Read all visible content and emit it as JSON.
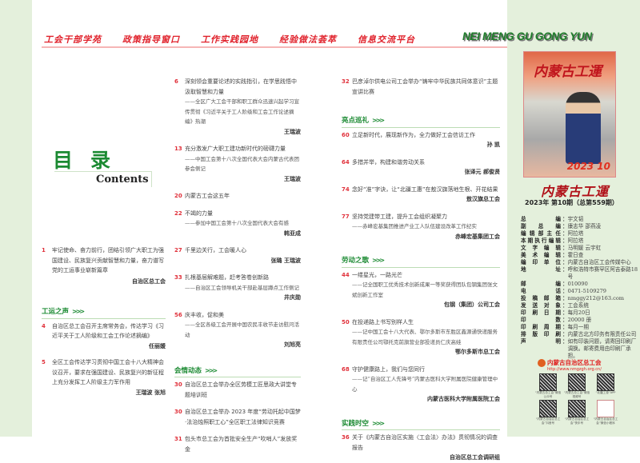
{
  "nav": [
    "工会干部学苑",
    "政策指导窗口",
    "工作实践园地",
    "经验做法荟萃",
    "信息交流平台"
  ],
  "brand": "NEI MENG GU GONG YUN",
  "toc": {
    "title": "目录",
    "subtitle": "Contents"
  },
  "col1": {
    "lead": {
      "page": "1",
      "title": "牢记使命、奋力前行，团结引领广大职工为强国建设、民族复兴贡献智慧和力量，奋力谱写党的工运事业崭新篇章",
      "author": "自治区总工会"
    },
    "section": "工运之声",
    "items": [
      {
        "page": "4",
        "title": "自治区总工会召开主席常务会，传达学习《习近平关于工人阶级和工会工作论述摘编》",
        "author": "任丽媛"
      },
      {
        "page": "5",
        "title": "全区工会传达学习贯彻中国工会十八大精神会议召开，要求在强国建设、民族复兴的新征程上充分发挥工人阶级主力军作用",
        "author": "王瑞波 张旭"
      }
    ]
  },
  "col2": {
    "items": [
      {
        "page": "6",
        "title": "深刻领会重要论述的实践指引，在学思践悟中汲取智慧和力量",
        "sub": "——全区广大工会干部和职工群众迅速兴起学习宣传贯彻《习近平关于工人阶级和工会工作论述摘编》热潮",
        "author": "王瑞波"
      },
      {
        "page": "13",
        "title": "充分激发广大职工建功新时代的磅礴力量",
        "sub": "——中国工会第十八次全国代表大会内蒙古代表团参会侧记",
        "author": "王瑞波"
      },
      {
        "page": "20",
        "title": "内蒙古工会这五年",
        "sub": "",
        "author": ""
      },
      {
        "page": "22",
        "title": "不竭的力量",
        "sub": "——参加中国工会第十八次全国代表大会有感",
        "author": "韩亚成"
      },
      {
        "page": "27",
        "title": "千里边关行，工会暖人心",
        "sub": "",
        "author": "张璐 王瑞波"
      },
      {
        "page": "33",
        "title": "扎根基层解难题，赶考答卷创新路",
        "sub": "——自治区工会领导机关干部赴基层蹲点工作侧记",
        "author": "井庆勋"
      },
      {
        "page": "56",
        "title": "庆丰收，促和美",
        "sub": "——全区各级工会开展中国农民丰收节走访慰问活动",
        "author": "刘旭亮"
      }
    ],
    "section": "会情动态",
    "news": [
      {
        "page": "30",
        "title": "自治区总工会举办全区劳模工匠思政大讲堂专题培训班"
      },
      {
        "page": "30",
        "title": "自治区总工会举办 2023 年度“劳动托起中国梦·法治烛照职工心”全区职工法律知识竞赛"
      },
      {
        "page": "31",
        "title": "包头市总工会为首批安全生产“吹哨人”发放奖金"
      }
    ]
  },
  "col3": {
    "top": {
      "page": "32",
      "title": "巴彦淖尔供电公司工会举办“铸牢中华民族共同体意识”主题宣讲比赛"
    },
    "sections": [
      {
        "name": "亮点巡礼",
        "items": [
          {
            "page": "60",
            "title": "立足新时代，展现新作为，全力做好工会信访工作",
            "sub": "",
            "author": "孙 凯"
          },
          {
            "page": "64",
            "title": "多措并举，构建和谐劳动关系",
            "sub": "",
            "author": "张译元 郝俊贤"
          },
          {
            "page": "74",
            "title": "念好“准”字诀，让“北疆工惠”在敖汉旗落地生根、开花结果",
            "sub": "",
            "author": "敖汉旗总工会"
          },
          {
            "page": "77",
            "title": "坚持党建带工建，提升工会组织凝聚力",
            "sub": "——赤峰宏基集团推进产业工人队伍建设改革工作纪实",
            "author": "赤峰宏基集团工会"
          }
        ]
      },
      {
        "name": "劳动之歌",
        "items": [
          {
            "page": "44",
            "title": "一缕星光，一路光芒",
            "sub": "——记全国职工优秀技术创新成果一等奖获得团队包钢集团张文斌创新工作室",
            "author": "包钢（集团）公司工会"
          },
          {
            "page": "50",
            "title": "在投递路上书写别样人生",
            "sub": "——记中国工会十八大代表、鄂尔多斯市东胜区鑫源通快递服务有限责任公司鄂托克前旗营业部投递员仁庆高娃",
            "author": "鄂尔多斯市总工会"
          },
          {
            "page": "68",
            "title": "守护健康路上，我们与您同行",
            "sub": "——记“自治区工人先锋号”内蒙古医科大学附属医院健康管理中心",
            "author": "内蒙古医科大学附属医院工会"
          }
        ]
      },
      {
        "name": "实践时空",
        "items": [
          {
            "page": "36",
            "title": "关于《内蒙古自治区实施〈工会法〉办法》贯彻情况的调查报告",
            "sub": "",
            "author": "自治区总工会调研组"
          }
        ]
      }
    ]
  },
  "magazine": {
    "cover_title": "内蒙古工運",
    "cover_issue": "2023 10",
    "title": "内蒙古工運",
    "issue": "2023年 第10期（总第559期）"
  },
  "masthead": [
    {
      "k": "总编",
      "v": "宇文韬"
    },
    {
      "k": "副总编",
      "v": "康志华 邵燕凌"
    },
    {
      "k": "编辑部主任",
      "v": "阿拉塔"
    },
    {
      "k": "本期执行编辑",
      "v": "阿拉塔"
    },
    {
      "k": "文字编辑",
      "v": "马明媛 云宇虹"
    },
    {
      "k": "美术编辑",
      "v": "霍日查"
    },
    {
      "k": "编印单位",
      "v": "内蒙古自治区工会传媒中心"
    },
    {
      "k": "地址",
      "v": "呼和浩特市赛罕区阿吉泰路18号"
    },
    {
      "k": "邮编",
      "v": "010090"
    },
    {
      "k": "电话",
      "v": "0471-5109279"
    },
    {
      "k": "投稿邮箱",
      "v": "nmggy212@163.com"
    },
    {
      "k": "发送对象",
      "v": "工会系统"
    },
    {
      "k": "印刷日期",
      "v": "每月20日"
    },
    {
      "k": "印数",
      "v": "20000 册"
    },
    {
      "k": "印刷周期",
      "v": "每月一期"
    },
    {
      "k": "排版印刷",
      "v": "内蒙古北方印务有限责任公司"
    },
    {
      "k": "声明",
      "v": "如有印装问题，请寄回印刷厂调换。邮寄费用由印刷厂承担。"
    }
  ],
  "org": {
    "name": "内蒙古自治区总工会",
    "url": "http://www.nmgzgh.org.cn/"
  },
  "qrcodes": [
    "“内蒙古总工会”微信公众号",
    "“内蒙古总工会”微信视频号",
    "“北疆工惠”APP",
    "“内蒙古自治区总工会”抖音号",
    "“内蒙古自治区总工会”快手号",
    "“内蒙古自治区总工会”微信小程序"
  ],
  "colors": {
    "accent_red": "#e0202a",
    "accent_green": "#1b8a32",
    "panel_bg": "#e4f0dc"
  }
}
